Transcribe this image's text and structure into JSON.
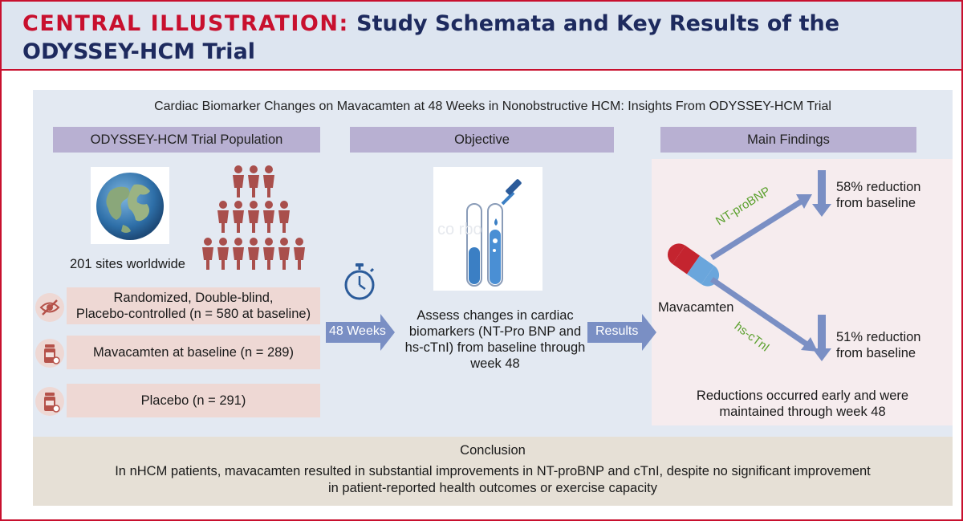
{
  "header": {
    "title_prefix": "CENTRAL ILLUSTRATION:",
    "title_line1": "Study Schemata and Key Results of the",
    "title_line2": "ODYSSEY-HCM Trial"
  },
  "subtitle": "Cardiac Biomarker Changes on Mavacamten at 48 Weeks in Nonobstructive HCM: Insights From ODYSSEY-HCM Trial",
  "population": {
    "heading": "ODYSSEY-HCM Trial Population",
    "sites": "201 sites worldwide",
    "design_line1": "Randomized, Double-blind,",
    "design_line2": "Placebo-controlled (n = 580 at baseline)",
    "mavacamten": "Mavacamten at baseline (n = 289)",
    "placebo": "Placebo (n = 291)"
  },
  "objective": {
    "heading": "Objective",
    "duration": "48 Weeks",
    "line1": "Assess changes in cardiac",
    "line2": "biomarkers (NT-Pro BNP and",
    "line3": "hs-cTnI) from baseline through",
    "line4": "week 48",
    "results_label": "Results"
  },
  "findings": {
    "heading": "Main Findings",
    "drug": "Mavacamten",
    "ntprobnp_label": "NT-proBNP",
    "ntprobnp_line1": "58% reduction",
    "ntprobnp_line2": "from baseline",
    "hsctni_label": "hs-cTnI",
    "hsctni_line1": "51% reduction",
    "hsctni_line2": "from baseline",
    "summary_line1": "Reductions occurred early and were",
    "summary_line2": "maintained through week 48"
  },
  "conclusion": {
    "heading": "Conclusion",
    "line1": "In nHCM patients, mavacamten resulted in substantial improvements in NT-proBNP and cTnI, despite no significant improvement",
    "line2": "in patient-reported health outcomes or exercise capacity"
  },
  "colors": {
    "brand_red": "#c8102e",
    "navy": "#1d2a5e",
    "arrow": "#7a8fc4",
    "label_green": "#5aa02c"
  },
  "icons": [
    "globe-icon",
    "people-icon",
    "eye-slash-icon",
    "pill-bottle-icon",
    "stopwatch-icon",
    "test-tube-icon",
    "capsule-icon",
    "down-arrow-icon"
  ]
}
